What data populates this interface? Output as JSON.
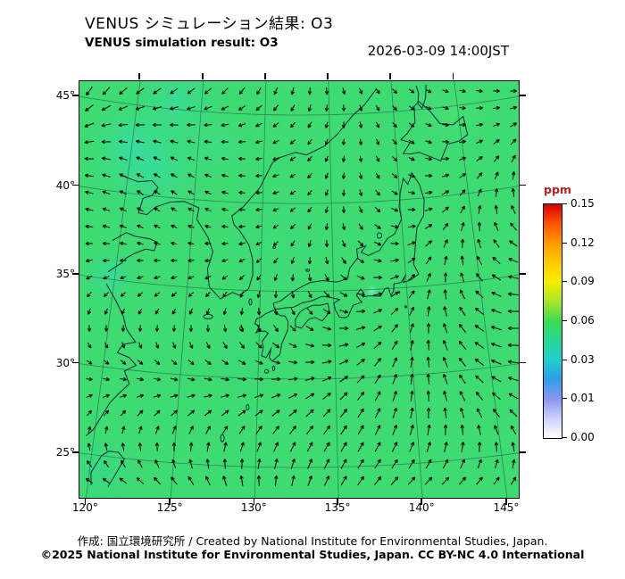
{
  "header": {
    "title_jp": "VENUS シミュレーション結果: O3",
    "title_en": "VENUS simulation result: O3",
    "timestamp": "2026-03-09 14:00JST"
  },
  "map": {
    "lat_ticks": [
      "45°",
      "40°",
      "35°",
      "30°",
      "25°"
    ],
    "lon_ticks": [
      "120°",
      "125°",
      "130°",
      "135°",
      "140°",
      "145°"
    ],
    "field_base_color": "#3eda72"
  },
  "colorbar": {
    "unit": "ppm",
    "unit_color": "#b22222",
    "tick_labels": [
      "0.15",
      "0.12",
      "0.09",
      "0.06",
      "0.03",
      "0.01",
      "0.00"
    ],
    "levels": [
      0.0,
      0.01,
      0.03,
      0.06,
      0.09,
      0.12,
      0.15
    ],
    "gradient_top_to_bottom": [
      "#d40000",
      "#ff5500",
      "#ff9900",
      "#ffcc00",
      "#f4ee00",
      "#a8e52c",
      "#3dd954",
      "#27d695",
      "#1fcfcf",
      "#2f9ce8",
      "#8a97f0",
      "#cdd2fa",
      "#ffffff"
    ]
  },
  "footer": {
    "credit_line": "作成: 国立環境研究所 / Created by National Institute for Environmental Studies, Japan.",
    "license_line": "©2025 National Institute for Environmental Studies, Japan. CC BY-NC 4.0 International"
  },
  "chart_data": {
    "type": "heatmap",
    "title": "VENUS シミュレーション結果: O3",
    "subtitle": "VENUS simulation result: O3",
    "timestamp": "2026-03-09 14:00JST",
    "variable": "O3 concentration",
    "unit": "ppm",
    "region": "East Asia (Japan, Korean Peninsula, eastern China, surrounding seas)",
    "projection": "conic (Lambert-conformal-like), graticule every 5 degrees",
    "lon_range": [
      119.5,
      145.8
    ],
    "lat_range": [
      23.3,
      46.3
    ],
    "lat_ticks": [
      45,
      40,
      35,
      30,
      25
    ],
    "lon_ticks": [
      120,
      125,
      130,
      135,
      140,
      145
    ],
    "colorbar_levels": [
      0.0,
      0.01,
      0.03,
      0.06,
      0.09,
      0.12,
      0.15
    ],
    "colorbar_colors_low_to_high": [
      "#ffffff",
      "#8a97f0",
      "#1fcfcf",
      "#3dd954",
      "#f4ee00",
      "#ff9900",
      "#d40000"
    ],
    "field_summary": "O3 field nearly uniform ~0.04-0.06 ppm (green) across the whole domain, with cyan patches ~0.03 ppm near 120-125E / 40-43N, along the western edge near 35N, near the top-left, and a small bright spot near 137.5E / 35N",
    "overlay": "black wind vector arrows on a regular ~1-degree grid covering the whole map",
    "grid": true,
    "legend_position": "right"
  }
}
